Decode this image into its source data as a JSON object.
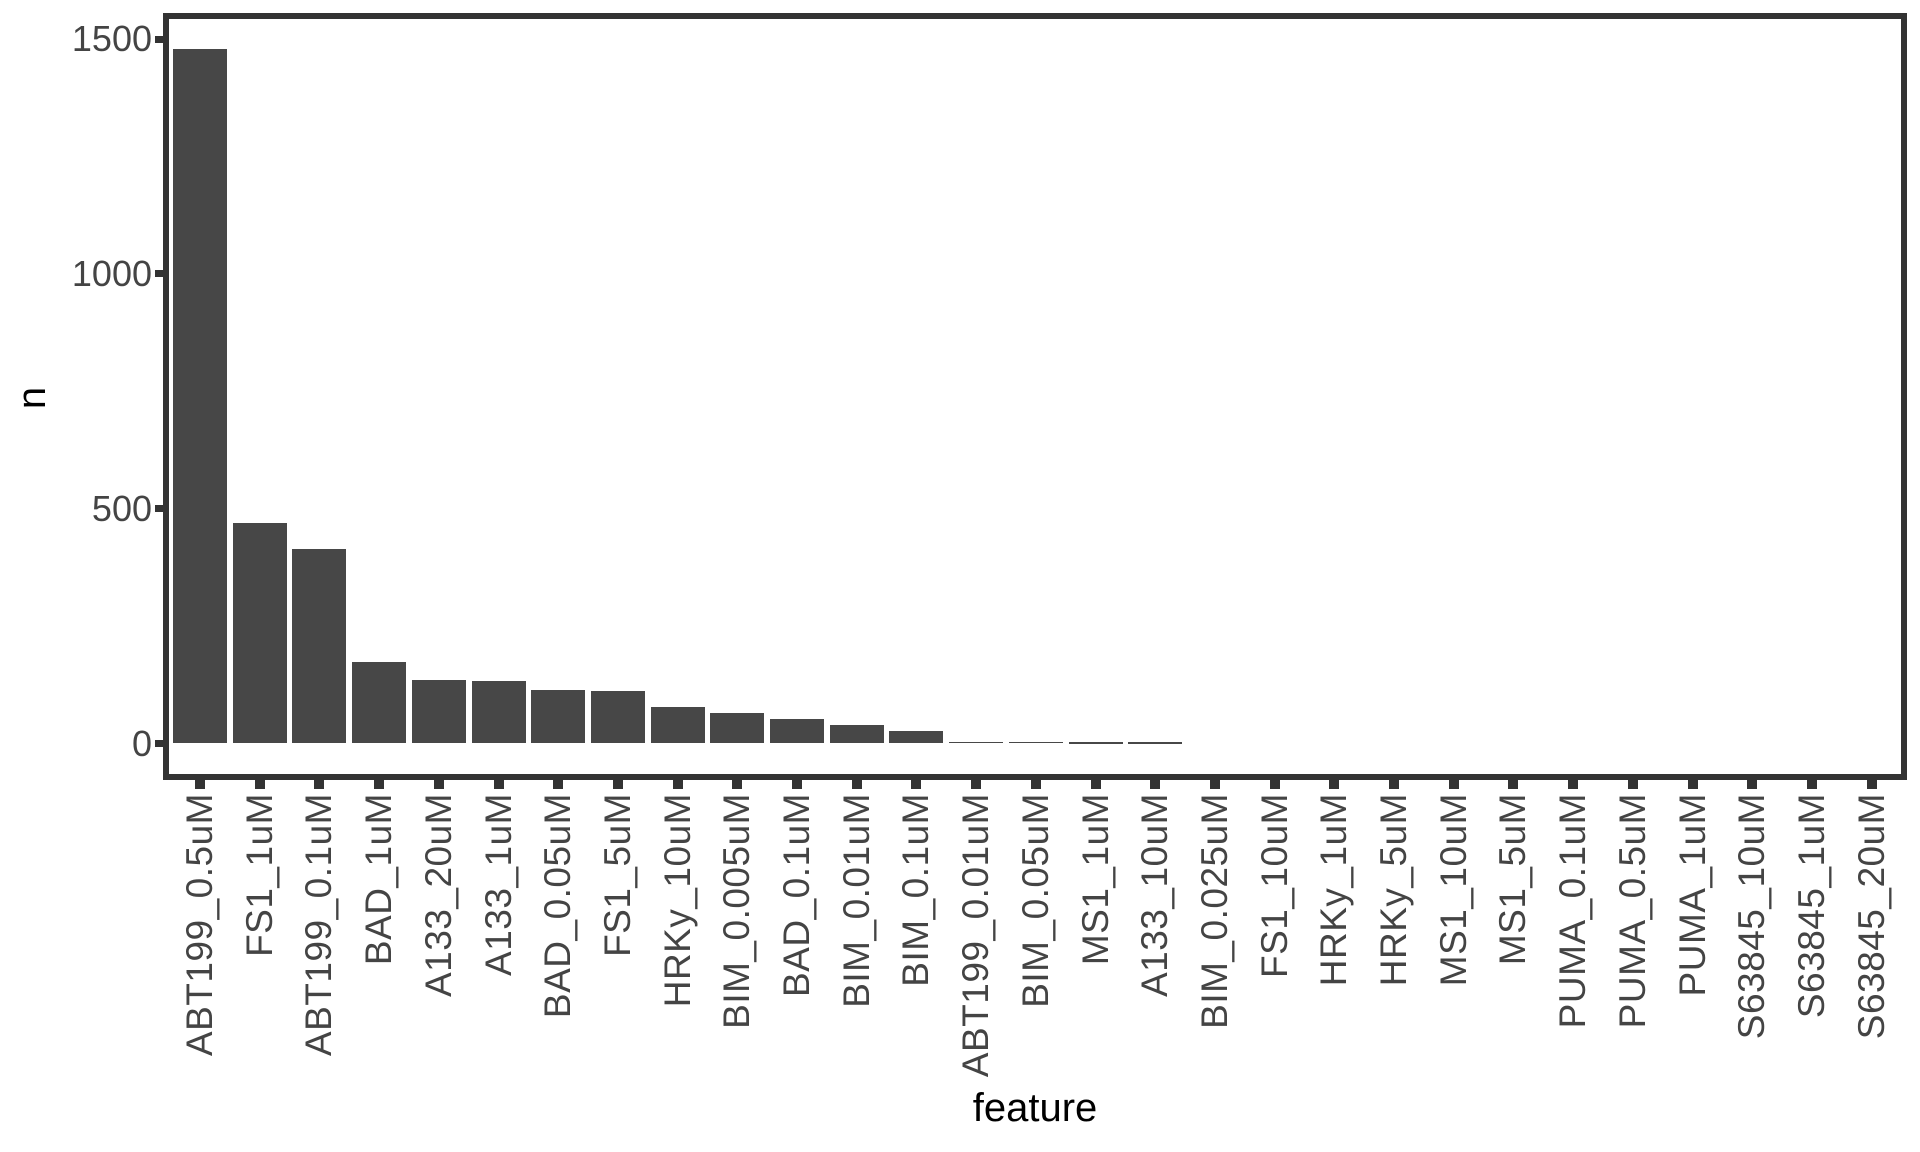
{
  "chart_data": {
    "type": "bar",
    "title": "",
    "xlabel": "feature",
    "ylabel": "n",
    "categories": [
      "ABT199_0.5uM",
      "FS1_1uM",
      "ABT199_0.1uM",
      "BAD_1uM",
      "A133_20uM",
      "A133_1uM",
      "BAD_0.05uM",
      "FS1_5uM",
      "HRKy_10uM",
      "BIM_0.005uM",
      "BAD_0.1uM",
      "BIM_0.01uM",
      "BIM_0.1uM",
      "ABT199_0.01uM",
      "BIM_0.05uM",
      "MS1_1uM",
      "A133_10uM",
      "BIM_0.025uM",
      "FS1_10uM",
      "HRKy_1uM",
      "HRKy_5uM",
      "MS1_10uM",
      "MS1_5uM",
      "PUMA_0.1uM",
      "PUMA_0.5uM",
      "PUMA_1uM",
      "S63845_10uM",
      "S63845_1uM",
      "S63845_20uM"
    ],
    "values": [
      1478,
      469,
      414,
      173,
      135,
      134,
      113,
      112,
      78,
      65,
      53,
      39,
      27,
      4,
      4,
      3,
      3,
      0,
      0,
      0,
      0,
      0,
      0,
      0,
      0,
      0,
      0,
      0,
      0
    ],
    "y_ticks": [
      0,
      500,
      1000,
      1500
    ],
    "ylim": [
      0,
      1550
    ],
    "grid": "off",
    "legend": "none",
    "x_label_rotation": 90,
    "bar_color": "#474747",
    "axis_color": "#333333",
    "tick_text_color": "#444444",
    "title_text_color": "#000000",
    "background_color": "#ffffff"
  }
}
